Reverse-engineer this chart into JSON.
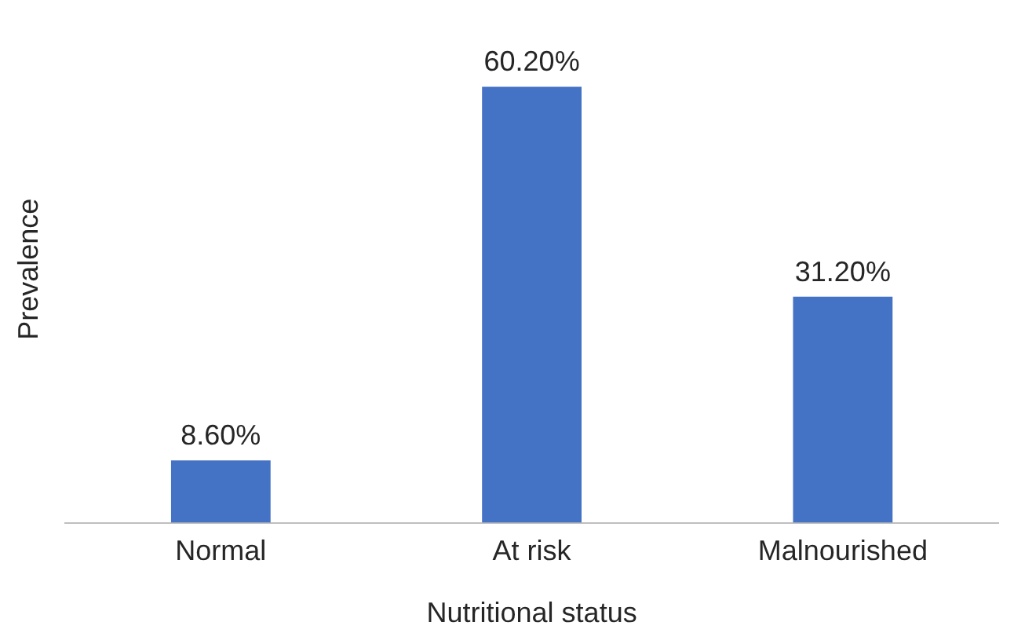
{
  "chart_data": {
    "type": "bar",
    "xlabel": "Nutritional status",
    "ylabel": "Prevalence",
    "categories": [
      "Normal",
      "At risk",
      "Malnourished"
    ],
    "values": [
      8.6,
      60.2,
      31.2
    ],
    "value_labels": [
      "8.60%",
      "60.20%",
      "31.20%"
    ],
    "color": "#4472c4",
    "tick_labels": "x",
    "legend": false
  }
}
